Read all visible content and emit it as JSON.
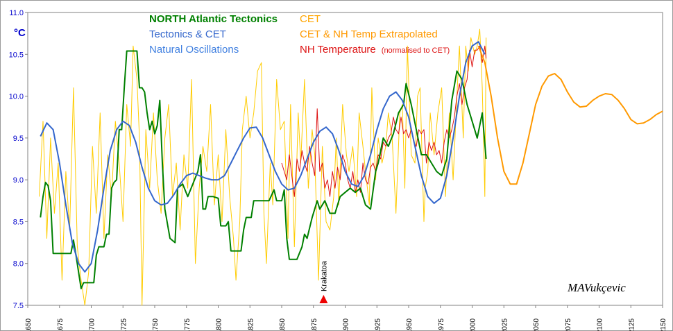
{
  "chart_data": {
    "type": "line",
    "ylabel": "°C",
    "xlim": [
      1650,
      2150
    ],
    "xticks": [
      1650,
      1675,
      1700,
      1725,
      1750,
      1775,
      1800,
      1825,
      1850,
      1875,
      1900,
      1925,
      1950,
      1975,
      2000,
      2025,
      2050,
      2075,
      2100,
      2125,
      2150
    ],
    "ylim": [
      7.5,
      11
    ],
    "yticks": [
      7.5,
      {
        "value": 8,
        "label": "8.0"
      },
      8.5,
      {
        "value": 9,
        "label": "9.0"
      },
      9.5,
      {
        "value": 10,
        "label": "10.0"
      },
      10.5,
      {
        "value": 11,
        "label": "11.0"
      }
    ],
    "grid": false,
    "series": [
      {
        "name": "CET",
        "color": "#ffcc00",
        "x": [
          1659,
          1662,
          1665,
          1668,
          1671,
          1674,
          1677,
          1680,
          1683,
          1686,
          1689,
          1692,
          1695,
          1698,
          1701,
          1704,
          1707,
          1710,
          1713,
          1716,
          1719,
          1722,
          1725,
          1728,
          1731,
          1733,
          1736,
          1738,
          1740,
          1743,
          1746,
          1749,
          1752,
          1755,
          1758,
          1761,
          1764,
          1767,
          1770,
          1773,
          1776,
          1779,
          1782,
          1785,
          1788,
          1791,
          1794,
          1797,
          1800,
          1803,
          1806,
          1809,
          1812,
          1814,
          1817,
          1819,
          1822,
          1825,
          1828,
          1831,
          1834,
          1836,
          1838,
          1841,
          1843,
          1846,
          1849,
          1852,
          1855,
          1857,
          1860,
          1863,
          1865,
          1868,
          1871,
          1874,
          1876,
          1879,
          1882,
          1885,
          1888,
          1891,
          1893,
          1895,
          1898,
          1901,
          1903,
          1906,
          1909,
          1911,
          1914,
          1916,
          1919,
          1921,
          1924,
          1926,
          1929,
          1932,
          1934,
          1937,
          1940,
          1943,
          1945,
          1947,
          1949,
          1952,
          1955,
          1957,
          1959,
          1962,
          1963,
          1965,
          1967,
          1970,
          1973,
          1976,
          1979,
          1982,
          1985,
          1988,
          1990,
          1993,
          1995,
          1997,
          1999,
          2002,
          2004,
          2006,
          2008,
          2010,
          2011
        ],
        "values": [
          8.8,
          9.7,
          8.3,
          9.5,
          8.6,
          9.2,
          7.8,
          9.1,
          8.4,
          10.1,
          8.2,
          7.8,
          7.5,
          7.9,
          9.4,
          8.6,
          9.8,
          8.3,
          9.3,
          8.8,
          9.7,
          9.2,
          8.5,
          9.9,
          9.4,
          10.6,
          10.2,
          9.5,
          7.5,
          9.6,
          8.9,
          9.8,
          9.0,
          8.6,
          9.5,
          9.9,
          8.8,
          9.2,
          8.4,
          9.3,
          8.9,
          10.2,
          8.0,
          8.9,
          9.4,
          9.1,
          9.9,
          8.7,
          9.3,
          8.5,
          9.6,
          8.8,
          8.3,
          7.8,
          8.5,
          9.6,
          10.0,
          9.5,
          9.8,
          10.3,
          10.4,
          8.6,
          8.0,
          9.2,
          8.7,
          10.2,
          9.6,
          9.7,
          8.3,
          9.9,
          8.2,
          9.8,
          9.2,
          10.2,
          8.9,
          9.6,
          9.3,
          7.8,
          9.4,
          8.5,
          8.4,
          8.8,
          9.5,
          8.7,
          9.9,
          9.3,
          9.1,
          9.4,
          8.8,
          9.8,
          9.4,
          9.1,
          8.7,
          10.1,
          9.0,
          9.5,
          9.2,
          9.4,
          9.8,
          9.5,
          8.6,
          9.8,
          9.9,
          8.9,
          10.6,
          9.3,
          9.2,
          10.0,
          10.1,
          8.5,
          8.9,
          9.1,
          9.8,
          9.3,
          9.8,
          10.1,
          8.8,
          9.8,
          9.0,
          10.0,
          10.6,
          9.5,
          10.6,
          10.3,
          10.7,
          10.5,
          10.6,
          10.8,
          10.1,
          8.8,
          10.7
        ]
      },
      {
        "name": "NH Temperature",
        "name_note": "(normalised to CET)",
        "color": "#dd1111",
        "x": [
          1850,
          1852,
          1854,
          1856,
          1858,
          1860,
          1862,
          1864,
          1866,
          1868,
          1870,
          1872,
          1874,
          1876,
          1878,
          1880,
          1882,
          1884,
          1886,
          1888,
          1890,
          1892,
          1894,
          1896,
          1898,
          1900,
          1902,
          1904,
          1906,
          1908,
          1910,
          1912,
          1914,
          1916,
          1918,
          1920,
          1922,
          1924,
          1926,
          1928,
          1930,
          1932,
          1934,
          1936,
          1938,
          1940,
          1942,
          1944,
          1946,
          1948,
          1950,
          1952,
          1954,
          1956,
          1958,
          1960,
          1962,
          1964,
          1966,
          1968,
          1970,
          1972,
          1974,
          1976,
          1978,
          1980,
          1982,
          1984,
          1986,
          1988,
          1990,
          1992,
          1994,
          1996,
          1998,
          2000,
          2002,
          2004,
          2006,
          2008,
          2010,
          2011
        ],
        "values": [
          9.2,
          9.1,
          9.0,
          9.3,
          9.05,
          8.8,
          9.25,
          9.1,
          9.35,
          9.2,
          9.1,
          9.4,
          9.2,
          9.05,
          9.85,
          9.1,
          9.2,
          8.9,
          9.0,
          8.8,
          9.1,
          8.9,
          9.15,
          9.0,
          9.3,
          9.2,
          9.0,
          8.9,
          9.1,
          8.85,
          9.0,
          8.85,
          9.2,
          9.0,
          8.95,
          9.15,
          9.2,
          9.1,
          9.3,
          9.25,
          9.45,
          9.4,
          9.5,
          9.55,
          9.75,
          9.6,
          9.55,
          9.75,
          9.55,
          9.6,
          9.5,
          9.6,
          9.45,
          9.4,
          9.6,
          9.55,
          9.6,
          9.2,
          9.45,
          9.35,
          9.45,
          9.3,
          9.35,
          9.2,
          9.45,
          9.6,
          9.5,
          9.6,
          9.75,
          10.0,
          10.15,
          9.9,
          10.1,
          10.2,
          10.55,
          10.35,
          10.55,
          10.55,
          10.6,
          10.4,
          10.6,
          10.45
        ]
      },
      {
        "name": "NORTH Atlantic  Tectonics",
        "color": "#008000",
        "x": [
          1660,
          1662,
          1664,
          1666,
          1668,
          1670,
          1675,
          1680,
          1684,
          1686,
          1688,
          1690,
          1692,
          1694,
          1698,
          1702,
          1704,
          1706,
          1710,
          1712,
          1714,
          1716,
          1718,
          1720,
          1722,
          1724,
          1726,
          1728,
          1732,
          1736,
          1738,
          1740,
          1742,
          1744,
          1746,
          1748,
          1750,
          1752,
          1754,
          1756,
          1758,
          1762,
          1766,
          1768,
          1772,
          1776,
          1780,
          1784,
          1786,
          1788,
          1790,
          1792,
          1796,
          1800,
          1802,
          1806,
          1808,
          1810,
          1816,
          1818,
          1820,
          1822,
          1826,
          1828,
          1834,
          1840,
          1844,
          1846,
          1848,
          1850,
          1852,
          1854,
          1856,
          1862,
          1866,
          1868,
          1870,
          1874,
          1878,
          1880,
          1884,
          1888,
          1892,
          1896,
          1900,
          1904,
          1908,
          1912,
          1916,
          1920,
          1924,
          1926,
          1930,
          1934,
          1938,
          1942,
          1946,
          1948,
          1952,
          1956,
          1960,
          1964,
          1968,
          1972,
          1976,
          1980,
          1984,
          1988,
          1992,
          1996,
          2000,
          2004,
          2008,
          2011
        ],
        "values": [
          8.55,
          8.8,
          8.97,
          8.93,
          8.75,
          8.12,
          8.12,
          8.12,
          8.12,
          8.28,
          8.1,
          7.9,
          7.7,
          7.77,
          7.77,
          7.77,
          8.1,
          8.2,
          8.2,
          8.35,
          8.35,
          8.9,
          8.97,
          9.0,
          9.6,
          9.6,
          10.1,
          10.54,
          10.54,
          10.54,
          10.1,
          10.1,
          10.05,
          9.8,
          9.6,
          9.7,
          9.55,
          9.65,
          9.95,
          9.2,
          8.65,
          8.3,
          8.25,
          8.9,
          8.95,
          8.8,
          8.95,
          9.1,
          9.3,
          8.65,
          8.65,
          8.8,
          8.8,
          8.78,
          8.45,
          8.45,
          8.5,
          8.15,
          8.15,
          8.15,
          8.4,
          8.55,
          8.55,
          8.75,
          8.75,
          8.75,
          8.88,
          8.75,
          8.75,
          8.75,
          8.88,
          8.3,
          8.05,
          8.05,
          8.2,
          8.35,
          8.3,
          8.55,
          8.75,
          8.65,
          8.75,
          8.6,
          8.6,
          8.8,
          8.85,
          8.9,
          8.85,
          8.9,
          8.7,
          8.65,
          9.1,
          9.2,
          9.5,
          9.4,
          9.55,
          9.8,
          9.9,
          10.15,
          9.9,
          9.6,
          9.3,
          9.3,
          9.2,
          9.1,
          9.05,
          9.25,
          9.95,
          10.3,
          10.2,
          9.9,
          9.7,
          9.5,
          9.8,
          9.25
        ]
      },
      {
        "name": "Tectonics & CET",
        "color": "#3366cc",
        "x": [
          1660,
          1665,
          1670,
          1675,
          1680,
          1685,
          1690,
          1695,
          1700,
          1705,
          1710,
          1715,
          1720,
          1725,
          1730,
          1735,
          1740,
          1745,
          1750,
          1755,
          1760,
          1765,
          1770,
          1775,
          1780,
          1785,
          1790,
          1795,
          1800,
          1805,
          1810,
          1815,
          1820,
          1825,
          1830,
          1835,
          1840,
          1845,
          1850,
          1855,
          1860,
          1865,
          1870,
          1875,
          1880,
          1885,
          1890,
          1895,
          1900,
          1905,
          1910,
          1915,
          1920,
          1925,
          1930,
          1935,
          1940,
          1945,
          1950,
          1955,
          1960,
          1965,
          1970,
          1975,
          1980,
          1985,
          1990,
          1995,
          2000,
          2005,
          2010
        ],
        "values": [
          9.52,
          9.68,
          9.6,
          9.2,
          8.7,
          8.25,
          8.0,
          7.9,
          8.0,
          8.4,
          8.9,
          9.35,
          9.6,
          9.7,
          9.65,
          9.45,
          9.15,
          8.9,
          8.75,
          8.7,
          8.72,
          8.82,
          8.95,
          9.05,
          9.08,
          9.05,
          9.02,
          9.0,
          9.0,
          9.05,
          9.2,
          9.35,
          9.5,
          9.62,
          9.63,
          9.5,
          9.3,
          9.1,
          8.95,
          8.88,
          8.9,
          9.05,
          9.25,
          9.45,
          9.58,
          9.63,
          9.55,
          9.35,
          9.1,
          8.95,
          8.92,
          9.05,
          9.3,
          9.6,
          9.85,
          10.0,
          10.05,
          9.95,
          9.75,
          9.4,
          9.05,
          8.8,
          8.72,
          8.78,
          9.05,
          9.5,
          10.0,
          10.4,
          10.6,
          10.65,
          10.5
        ]
      },
      {
        "name": "CET & NH Temp Extrapolated",
        "color": "#ff9900",
        "x": [
          2005,
          2010,
          2015,
          2020,
          2025,
          2030,
          2035,
          2040,
          2045,
          2050,
          2055,
          2060,
          2065,
          2070,
          2075,
          2080,
          2085,
          2090,
          2095,
          2100,
          2105,
          2110,
          2115,
          2120,
          2125,
          2130,
          2135,
          2140,
          2145,
          2150
        ],
        "values": [
          10.6,
          10.4,
          10.0,
          9.5,
          9.1,
          8.95,
          8.95,
          9.2,
          9.55,
          9.9,
          10.12,
          10.24,
          10.27,
          10.2,
          10.05,
          9.93,
          9.87,
          9.88,
          9.95,
          10.0,
          10.03,
          10.02,
          9.95,
          9.85,
          9.72,
          9.67,
          9.68,
          9.72,
          9.78,
          9.82
        ]
      }
    ],
    "annotations": [
      {
        "text": "Natural Oscillations",
        "color": "#3f7fe0"
      },
      {
        "text": "Krakatoa",
        "x": 1883,
        "color": "#ee0000"
      },
      {
        "text": "MAVukçevic"
      }
    ]
  }
}
